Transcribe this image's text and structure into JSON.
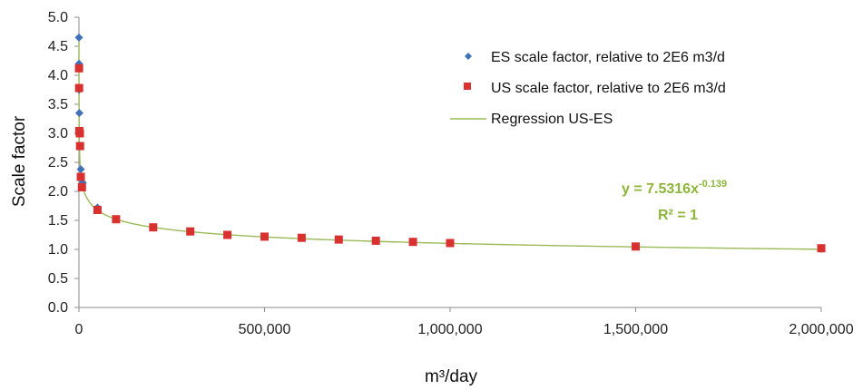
{
  "chart_data": {
    "type": "scatter",
    "title": "",
    "xlabel": "m³/day",
    "ylabel": "Scale factor",
    "xlim": [
      0,
      2000000
    ],
    "ylim": [
      0,
      5.0
    ],
    "grid": false,
    "legend_position": "top-right",
    "x_ticks": [
      0,
      500000,
      1000000,
      1500000,
      2000000
    ],
    "x_tick_labels": [
      "0",
      "500,000",
      "1,000,000",
      "1,500,000",
      "2,000,000"
    ],
    "y_ticks": [
      0,
      0.5,
      1.0,
      1.5,
      2.0,
      2.5,
      3.0,
      3.5,
      4.0,
      4.5,
      5.0
    ],
    "y_tick_labels": [
      "0.0",
      "0.5",
      "1.0",
      "1.5",
      "2.0",
      "2.5",
      "3.0",
      "3.5",
      "4.0",
      "4.5",
      "5.0"
    ],
    "series": [
      {
        "name": "ES scale factor, relative to 2E6 m3/d",
        "marker": "diamond",
        "color": "#3f72b8",
        "x": [
          100,
          250,
          500,
          1000,
          2500,
          5000,
          10000,
          50000,
          100000,
          200000,
          300000,
          400000,
          500000,
          600000,
          700000,
          800000,
          900000,
          1000000,
          1500000,
          2000000
        ],
        "y": [
          4.65,
          4.2,
          3.75,
          3.35,
          3.0,
          2.38,
          2.15,
          1.72,
          1.52,
          1.38,
          1.31,
          1.25,
          1.22,
          1.2,
          1.17,
          1.15,
          1.13,
          1.11,
          1.05,
          1.01
        ]
      },
      {
        "name": "US scale factor, relative to 2E6 m3/d",
        "marker": "square",
        "color": "#d9312f",
        "x": [
          250,
          500,
          1000,
          2500,
          3000,
          5000,
          8000,
          50000,
          100000,
          200000,
          300000,
          400000,
          500000,
          600000,
          700000,
          800000,
          900000,
          1000000,
          1500000,
          2000000
        ],
        "y": [
          4.12,
          3.78,
          3.04,
          3.0,
          2.78,
          2.25,
          2.07,
          1.68,
          1.52,
          1.38,
          1.31,
          1.25,
          1.22,
          1.2,
          1.17,
          1.15,
          1.13,
          1.11,
          1.05,
          1.02
        ]
      }
    ],
    "regression": {
      "name": "Regression US-ES",
      "color": "#9bbb59",
      "coefficient": 7.5316,
      "exponent": -0.139,
      "equation_prefix": "y = 7.5316x",
      "equation_exponent": "-0.139",
      "r_squared_label": "R² = 1"
    }
  }
}
